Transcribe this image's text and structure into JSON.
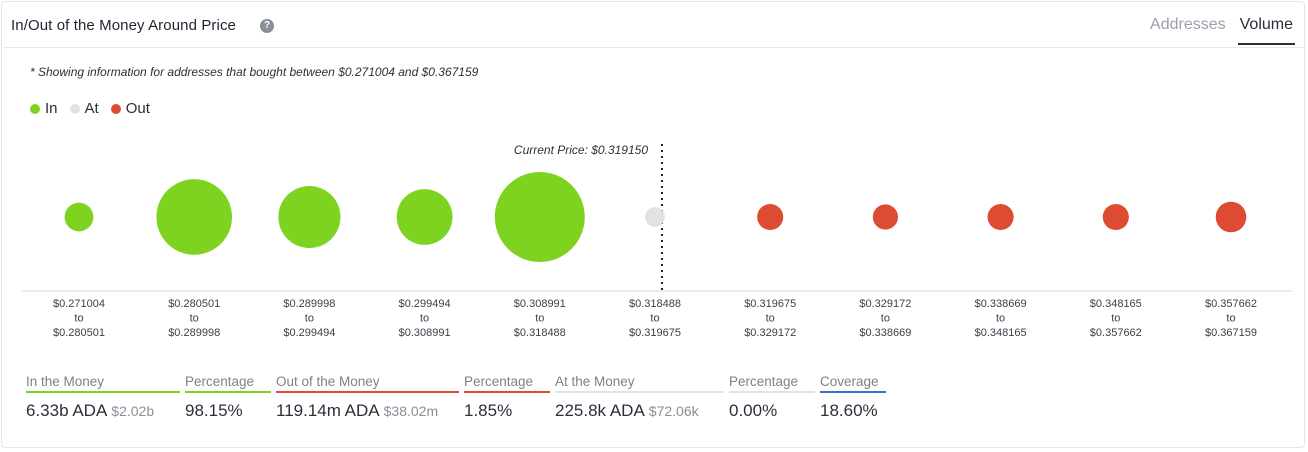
{
  "header": {
    "title": "In/Out of the Money Around Price",
    "help_icon": "question-circle-icon",
    "tabs": [
      {
        "label": "Addresses",
        "active": false
      },
      {
        "label": "Volume",
        "active": true
      }
    ]
  },
  "note": "* Showing information for addresses that bought between $0.271004 and $0.367159",
  "legend": [
    {
      "label": "In",
      "color": "#7ed321"
    },
    {
      "label": "At",
      "color": "#e2e2e2"
    },
    {
      "label": "Out",
      "color": "#de4b33"
    }
  ],
  "chart_data": {
    "type": "scatter",
    "annotation": "Current Price: $0.319150",
    "colors": {
      "in": "#7ed321",
      "at": "#e2e2e2",
      "out": "#de4b33"
    },
    "buckets": [
      {
        "from": "$0.271004",
        "to_word": "to",
        "to": "$0.280501",
        "status": "in",
        "size": 0.32
      },
      {
        "from": "$0.280501",
        "to_word": "to",
        "to": "$0.289998",
        "status": "in",
        "size": 0.84
      },
      {
        "from": "$0.289998",
        "to_word": "to",
        "to": "$0.299494",
        "status": "in",
        "size": 0.69
      },
      {
        "from": "$0.299494",
        "to_word": "to",
        "to": "$0.308991",
        "status": "in",
        "size": 0.62
      },
      {
        "from": "$0.308991",
        "to_word": "to",
        "to": "$0.318488",
        "status": "in",
        "size": 1.0
      },
      {
        "from": "$0.318488",
        "to_word": "to",
        "to": "$0.319675",
        "status": "at",
        "size": 0.22
      },
      {
        "from": "$0.319675",
        "to_word": "to",
        "to": "$0.329172",
        "status": "out",
        "size": 0.29
      },
      {
        "from": "$0.329172",
        "to_word": "to",
        "to": "$0.338669",
        "status": "out",
        "size": 0.28
      },
      {
        "from": "$0.338669",
        "to_word": "to",
        "to": "$0.348165",
        "status": "out",
        "size": 0.29
      },
      {
        "from": "$0.348165",
        "to_word": "to",
        "to": "$0.357662",
        "status": "out",
        "size": 0.29
      },
      {
        "from": "$0.357662",
        "to_word": "to",
        "to": "$0.367159",
        "status": "out",
        "size": 0.34
      }
    ]
  },
  "stats": [
    {
      "label": "In the Money",
      "value": "6.33b ADA",
      "sub": "$2.02b",
      "color": "#7ed321"
    },
    {
      "label": "Percentage",
      "value": "98.15%",
      "sub": "",
      "color": "#7ed321"
    },
    {
      "label": "Out of the Money",
      "value": "119.14m ADA",
      "sub": "$38.02m",
      "color": "#de4b33"
    },
    {
      "label": "Percentage",
      "value": "1.85%",
      "sub": "",
      "color": "#de4b33"
    },
    {
      "label": "At the Money",
      "value": "225.8k ADA",
      "sub": "$72.06k",
      "color": "#e2e2e2"
    },
    {
      "label": "Percentage",
      "value": "0.00%",
      "sub": "",
      "color": "#e2e2e2"
    },
    {
      "label": "Coverage",
      "value": "18.60%",
      "sub": "",
      "color": "#3b6fd6"
    }
  ]
}
